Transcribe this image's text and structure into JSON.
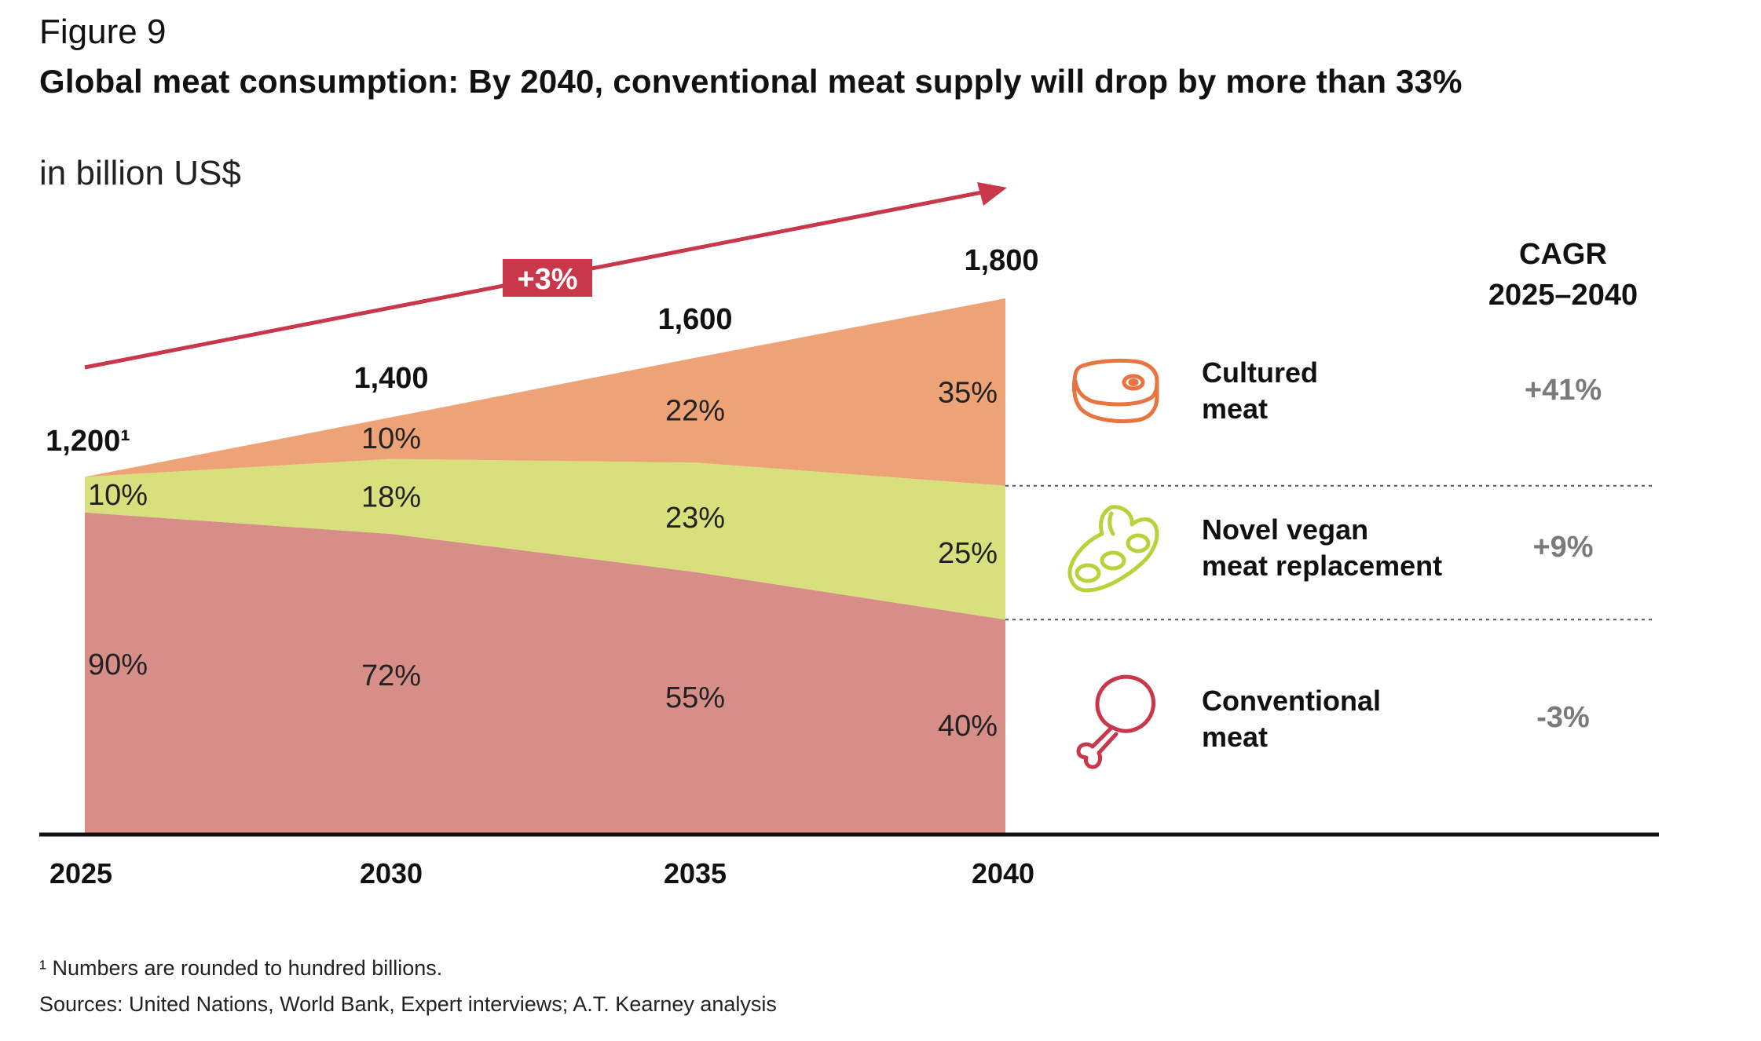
{
  "figure_label": "Figure 9",
  "title": "Global meat consumption: By 2040, conventional meat supply will drop by more than 33%",
  "unit": "in billion US$",
  "growth_badge": "+3%",
  "cagr_header": {
    "line1": "CAGR",
    "line2": "2025–2040"
  },
  "footnotes": [
    "¹ Numbers are rounded to hundred billions.",
    "Sources: United Nations, World Bank, Expert interviews; A.T. Kearney analysis"
  ],
  "legend": [
    {
      "label": "Cultured\nmeat",
      "cagr": "+41%",
      "icon": "steak-icon",
      "color": "#e8743f"
    },
    {
      "label": "Novel vegan\nmeat replacement",
      "cagr": "+9%",
      "icon": "soybean-icon",
      "color": "#b8d23a"
    },
    {
      "label": "Conventional\nmeat",
      "cagr": "-3%",
      "icon": "chicken-leg-icon",
      "color": "#c8374a"
    }
  ],
  "chart_data": {
    "type": "area",
    "categories": [
      "2025",
      "2030",
      "2035",
      "2040"
    ],
    "totals": [
      1200,
      1400,
      1600,
      1800
    ],
    "total_labels": [
      "1,200¹",
      "1,400",
      "1,600",
      "1,800"
    ],
    "series": [
      {
        "name": "Conventional meat",
        "shares": [
          90,
          72,
          55,
          40
        ],
        "share_labels": [
          "90%",
          "72%",
          "55%",
          "40%"
        ],
        "color": "#d88e88"
      },
      {
        "name": "Novel vegan meat replacement",
        "shares": [
          10,
          18,
          23,
          25
        ],
        "share_labels": [
          "10%",
          "18%",
          "23%",
          "25%"
        ],
        "color": "#d7e07d"
      },
      {
        "name": "Cultured meat",
        "shares": [
          0,
          10,
          22,
          35
        ],
        "share_labels": [
          "",
          "10%",
          "22%",
          "35%"
        ],
        "color": "#eea376"
      }
    ],
    "ylim": [
      0,
      1800
    ],
    "trend_color": "#c8374a"
  }
}
